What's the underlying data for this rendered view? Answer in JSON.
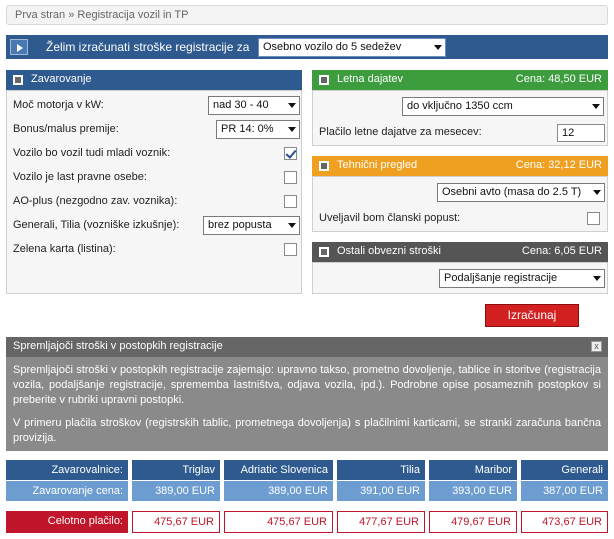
{
  "breadcrumb": {
    "items": [
      "Prva stran",
      "Registracija vozil in TP"
    ],
    "separator": "»"
  },
  "top_bar": {
    "label": "Želim izračunati stroške registracije za",
    "selected": "Osebno vozilo do 5 sedežev"
  },
  "insurance": {
    "title": "Zavarovanje",
    "rows": [
      {
        "label": "Moč motorja v kW:",
        "type": "select",
        "value": "nad 30 - 40"
      },
      {
        "label": "Bonus/malus premije:",
        "type": "select",
        "value": "PR 14: 0%"
      },
      {
        "label": "Vozilo bo vozil tudi mladi voznik:",
        "type": "checkbox",
        "checked": true
      },
      {
        "label": "Vozilo je last pravne osebe:",
        "type": "checkbox",
        "checked": false
      },
      {
        "label": "AO-plus (nezgodno zav. voznika):",
        "type": "checkbox",
        "checked": false
      },
      {
        "label": "Generali, Tilia (vozniške izkušnje):",
        "type": "select",
        "value": "brez popusta"
      },
      {
        "label": "Zelena karta (listina):",
        "type": "checkbox",
        "checked": false
      }
    ]
  },
  "annual_tax": {
    "title": "Letna dajatev",
    "price": "Cena: 48,50 EUR",
    "volume_select": "do vključno 1350 ccm",
    "months_label": "Plačilo letne dajatve za mesecev:",
    "months_value": "12"
  },
  "technical": {
    "title": "Tehnični pregled",
    "price": "Cena: 32,12 EUR",
    "vehicle_select": "Osebni avto (masa do 2.5 T)",
    "discount_label": "Uveljavil bom članski popust:",
    "discount_checked": false
  },
  "other": {
    "title": "Ostali obvezni stroški",
    "price": "Cena: 6,05 EUR",
    "select": "Podaljšanje registracije"
  },
  "calculate_label": "Izračunaj",
  "info": {
    "title": "Spremljajoči stroški v postopkih registracije",
    "close": "x",
    "paragraphs": [
      "Spremljajoči stroški v postopkih registracije zajemajo: upravno takso, prometno dovoljenje, tablice in storitve (registracija vozila, podaljšanje registracije, sprememba lastništva, odjava vozila, ipd.). Podrobne opise posameznih postopkov si preberite v rubriki upravni postopki.",
      "V primeru plačila stroškov (registrskih tablic, prometnega dovoljenja) s plačilnimi karticami, se stranki zaračuna bančna provizija."
    ]
  },
  "results": {
    "insurers_label": "Zavarovalnice:",
    "price_label": "Zavarovanje cena:",
    "total_label": "Celotno plačilo:",
    "insurers": [
      {
        "name": "Triglav",
        "price": "389,00 EUR",
        "total": "475,67 EUR"
      },
      {
        "name": "Adriatic Slovenica",
        "price": "389,00 EUR",
        "total": "475,67 EUR"
      },
      {
        "name": "Tilia",
        "price": "391,00 EUR",
        "total": "477,67 EUR"
      },
      {
        "name": "Maribor",
        "price": "393,00 EUR",
        "total": "479,67 EUR"
      },
      {
        "name": "Generali",
        "price": "387,00 EUR",
        "total": "473,67 EUR"
      }
    ]
  },
  "colors": {
    "header_blue": "#2e5a8f",
    "price_blue": "#6d9dd0",
    "tax_green": "#3d9c3d",
    "tech_orange": "#f0a020",
    "other_gray": "#555555",
    "accent_red": "#c0152a"
  }
}
